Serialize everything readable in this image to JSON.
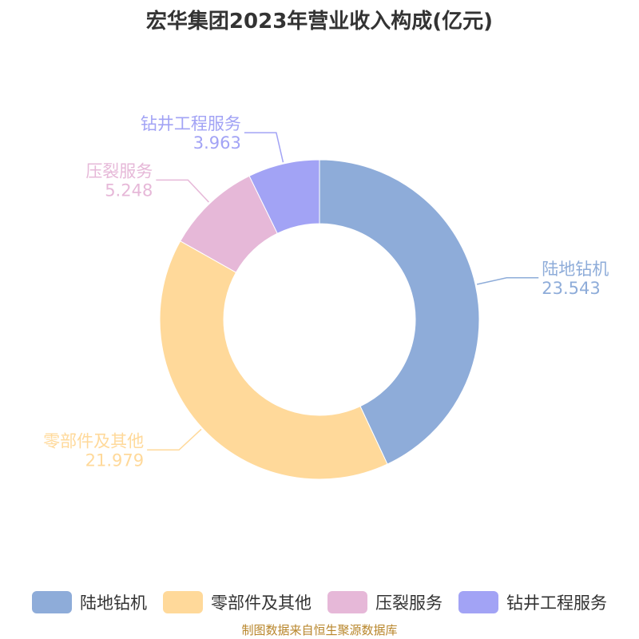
{
  "title": "宏华集团2023年营业收入构成(亿元)",
  "source": "制图数据来自恒生聚源数据库",
  "chart_data": {
    "type": "pie",
    "style": "donut",
    "title": "宏华集团2023年营业收入构成(亿元)",
    "legend_position": "bottom",
    "slices": [
      {
        "name": "陆地钻机",
        "value": 23.543,
        "label": "23.543",
        "color": "#8eacd9"
      },
      {
        "name": "零部件及其他",
        "value": 21.979,
        "label": "21.979",
        "color": "#ffd99a"
      },
      {
        "name": "压裂服务",
        "value": 5.248,
        "label": "5.248",
        "color": "#e6b8d8"
      },
      {
        "name": "钻井工程服务",
        "value": 3.963,
        "label": "3.963",
        "color": "#a2a3f5"
      }
    ]
  }
}
